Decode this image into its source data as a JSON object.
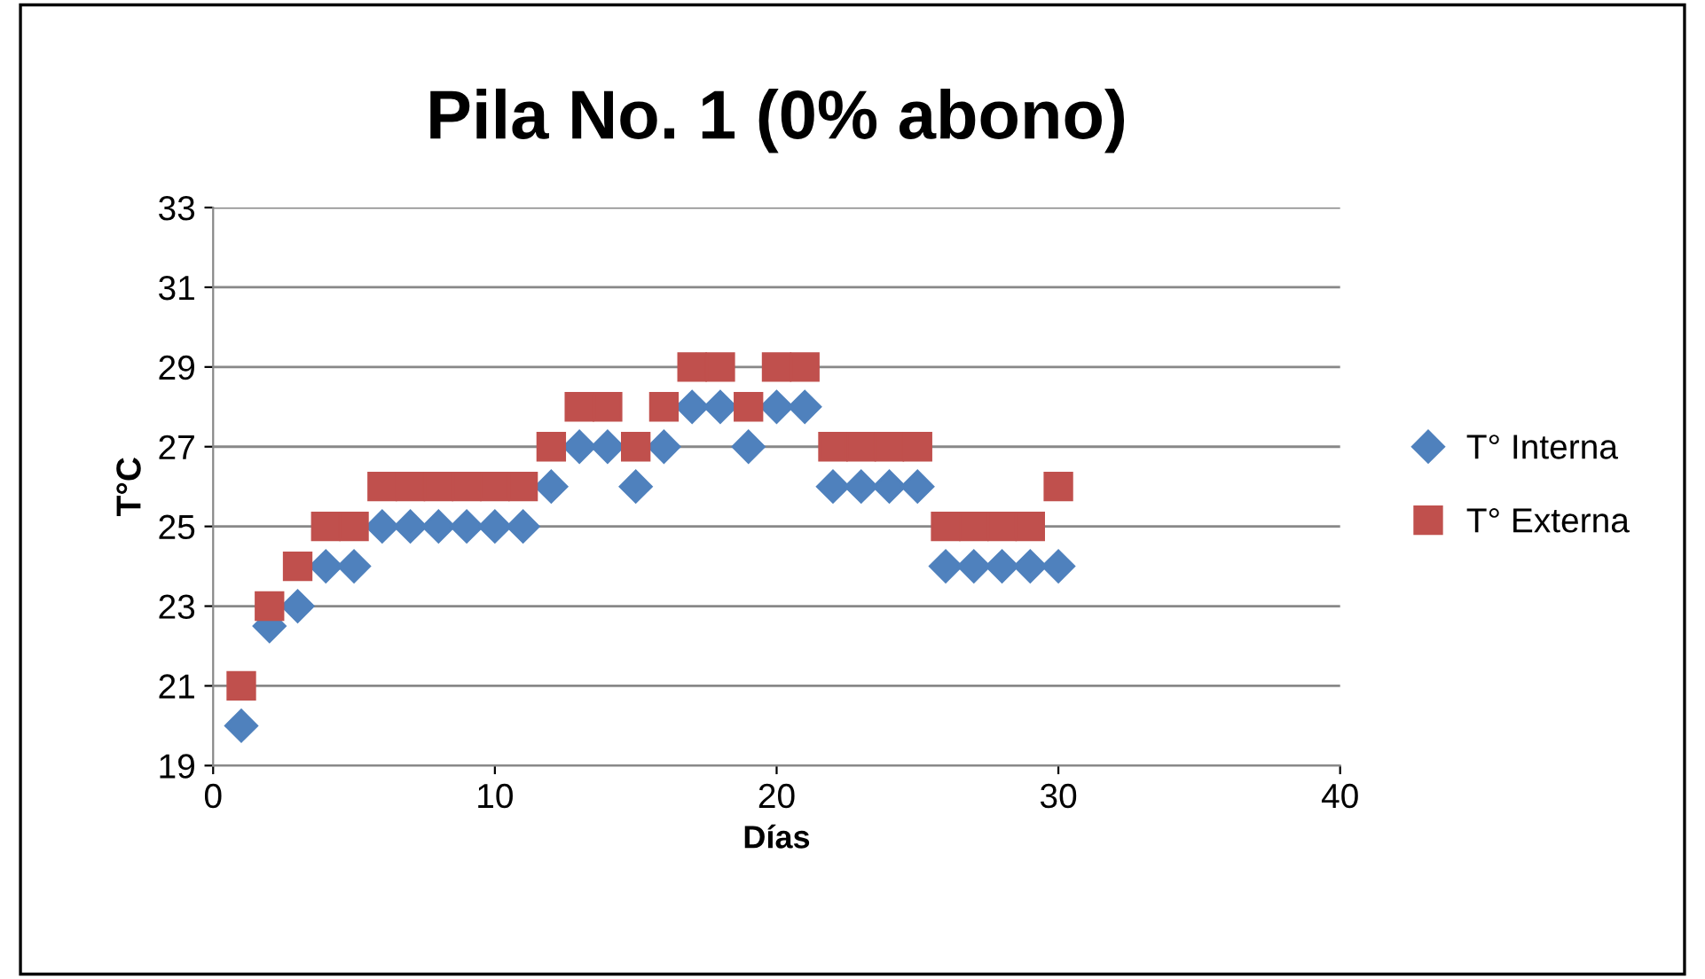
{
  "chart_data": {
    "type": "scatter",
    "title": "Pila No. 1 (0% abono)",
    "xlabel": "Días",
    "ylabel": "T°C",
    "x": [
      1,
      2,
      3,
      4,
      5,
      6,
      7,
      8,
      9,
      10,
      11,
      12,
      13,
      14,
      15,
      16,
      17,
      18,
      19,
      20,
      21,
      22,
      23,
      24,
      25,
      26,
      27,
      28,
      29,
      30
    ],
    "series": [
      {
        "name": "T° Interna",
        "color": "#4f81bd",
        "marker": "diamond",
        "values": [
          20,
          22.5,
          23,
          24,
          24,
          25,
          25,
          25,
          25,
          25,
          25,
          26,
          27,
          27,
          26,
          27,
          28,
          28,
          27,
          28,
          28,
          26,
          26,
          26,
          26,
          24,
          24,
          24,
          24,
          24
        ]
      },
      {
        "name": "T° Externa",
        "color": "#c0504d",
        "marker": "square",
        "values": [
          21,
          23,
          24,
          25,
          25,
          26,
          26,
          26,
          26,
          26,
          26,
          27,
          28,
          28,
          27,
          28,
          29,
          29,
          28,
          29,
          29,
          27,
          27,
          27,
          27,
          25,
          25,
          25,
          25,
          26
        ]
      }
    ],
    "xlim": [
      0,
      40
    ],
    "xticks": [
      0,
      10,
      20,
      30,
      40
    ],
    "ylim": [
      19,
      33
    ],
    "yticks": [
      19,
      21,
      23,
      25,
      27,
      29,
      31,
      33
    ],
    "grid": "y",
    "legend": "right"
  }
}
